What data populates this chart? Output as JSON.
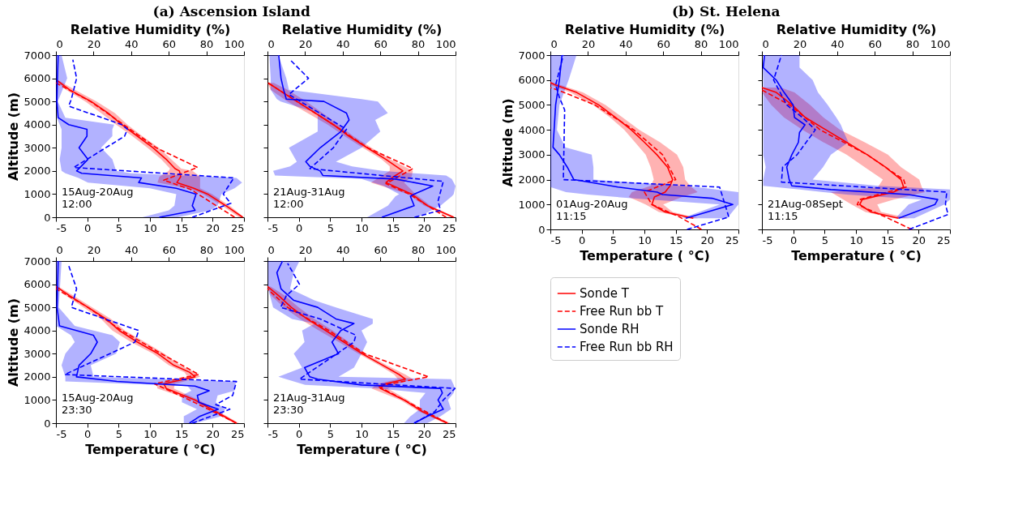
{
  "chart_data": [
    {
      "type": "line",
      "orientation": "horizontal",
      "title": "(a) Ascension Island",
      "x2label": "Relative Humidity (%)",
      "ylabel": "Altitude (m)",
      "xlim": [
        -5,
        25
      ],
      "xticks": [
        -5,
        0,
        5,
        10,
        15,
        20,
        25
      ],
      "x2lim": [
        0,
        100
      ],
      "x2ticks": [
        0,
        20,
        40,
        60,
        80,
        100
      ],
      "ylim": [
        0,
        7000
      ],
      "yticks": [
        0,
        1000,
        2000,
        3000,
        4000,
        5000,
        6000,
        7000
      ],
      "annotations": [
        "15Aug-20Aug\n12:00"
      ],
      "series": [
        {
          "color": "#ff0000",
          "line_style": "solid",
          "x": [
            0,
            500,
            1000,
            1250,
            1500,
            1750,
            2000,
            2100,
            2500,
            3000,
            3500,
            4000,
            4500,
            5000,
            5500,
            5900
          ],
          "values": [
            24.8,
            22.1,
            19.2,
            17.0,
            14.3,
            14.9,
            14.7,
            14.0,
            12.6,
            10.5,
            8.0,
            5.5,
            3.3,
            0.6,
            -2.8,
            -4.8
          ],
          "lower": [
            24.2,
            21.5,
            18.5,
            16,
            11.2,
            11.5,
            13,
            13.2,
            11.8,
            9.6,
            7.2,
            4.6,
            2.2,
            -0.3,
            -3.4,
            -5
          ],
          "upper": [
            25,
            22.7,
            19.9,
            18,
            18,
            18,
            16.8,
            15,
            13.4,
            11.4,
            8.8,
            6.4,
            4.4,
            1.5,
            -2.0,
            -4.5
          ]
        },
        {
          "color": "#ff0000",
          "line_style": "dashed",
          "x": [
            0,
            1200,
            1600,
            2150,
            3000,
            4000,
            5000,
            5800
          ],
          "values": [
            23.5,
            16.5,
            12.2,
            17.6,
            11.0,
            5.8,
            0.5,
            -5
          ]
        },
        {
          "color": "#0000ff",
          "line_style": "solid",
          "axis": "x2",
          "x": [
            0,
            300,
            500,
            1000,
            1250,
            1500,
            1700,
            1900,
            2000,
            2500,
            3000,
            3500,
            3800,
            4000,
            4300,
            5000,
            6000,
            7000
          ],
          "values": [
            55,
            74,
            72.5,
            74.5,
            64,
            44,
            45.5,
            13.7,
            11,
            17,
            12.3,
            16.5,
            16.5,
            6.8,
            1.2,
            0.5,
            0.8,
            1.2
          ],
          "lower": [
            46,
            60,
            63,
            64,
            50,
            17,
            12,
            5,
            3,
            2,
            3,
            3,
            3,
            2,
            0.5,
            0,
            0,
            0
          ],
          "upper": [
            65,
            82,
            86,
            88,
            95,
            99,
            96,
            40,
            32,
            30,
            24,
            30,
            30,
            31,
            5,
            1,
            6,
            3
          ]
        },
        {
          "color": "#0000ff",
          "line_style": "dashed",
          "axis": "x2",
          "x": [
            0,
            600,
            1000,
            1700,
            2150,
            3500,
            3800,
            4000,
            4800,
            5100,
            6000,
            6800
          ],
          "values": [
            72.5,
            93,
            89,
            94.6,
            9.5,
            36.5,
            38,
            35,
            6.8,
            8.2,
            11,
            9
          ]
        }
      ]
    },
    {
      "type": "line",
      "orientation": "horizontal",
      "x2label": "Relative Humidity (%)",
      "tick_labels": "x",
      "xlim": [
        -5,
        25
      ],
      "xticks": [
        -5,
        0,
        5,
        10,
        15,
        20,
        25
      ],
      "x2lim": [
        0,
        100
      ],
      "x2ticks": [
        0,
        20,
        40,
        60,
        80,
        100
      ],
      "ylim": [
        0,
        7000
      ],
      "yticks": [
        0,
        1000,
        2000,
        3000,
        4000,
        5000,
        6000,
        7000
      ],
      "annotations": [
        "21Aug-31Aug\n12:00"
      ],
      "series": [
        {
          "color": "#ff0000",
          "line_style": "solid",
          "x": [
            0,
            500,
            1000,
            1500,
            1750,
            2000,
            2200,
            2500,
            3000,
            3500,
            4000,
            4500,
            5000,
            5500,
            5800
          ],
          "values": [
            24.7,
            20.5,
            18,
            13.9,
            15.1,
            16.6,
            15.5,
            13.9,
            10.9,
            8,
            5.5,
            2.6,
            -0.3,
            -3.2,
            -4.9
          ],
          "lower": [
            24.2,
            20,
            17.4,
            11.5,
            13,
            14.5,
            14.5,
            13.2,
            10.2,
            7.3,
            4.6,
            1.4,
            -1.8,
            -4.5,
            -5
          ],
          "upper": [
            25,
            21,
            18.6,
            16.8,
            18,
            18.2,
            16.8,
            14.6,
            11.6,
            8.7,
            6.3,
            3.8,
            1.2,
            -1.8,
            -4
          ]
        },
        {
          "color": "#ff0000",
          "line_style": "dashed",
          "x": [
            0,
            1000,
            1450,
            2100,
            3000,
            4000,
            5000,
            5800
          ],
          "values": [
            23.5,
            17.6,
            13.9,
            18.2,
            11,
            5.5,
            -0.3,
            -4.9
          ]
        },
        {
          "color": "#0000ff",
          "line_style": "solid",
          "axis": "x2",
          "x": [
            0,
            500,
            900,
            1000,
            1350,
            1650,
            1800,
            2000,
            2200,
            2400,
            3000,
            3700,
            4200,
            4500,
            5000,
            5100,
            5500,
            6000,
            7000
          ],
          "values": [
            60.8,
            78,
            76,
            78,
            87.9,
            68,
            29.5,
            28,
            22.5,
            20.4,
            28,
            39,
            43.4,
            42,
            30,
            10,
            8.6,
            7.2,
            6
          ],
          "lower": [
            53,
            64,
            68,
            70,
            62,
            50,
            4,
            3,
            12,
            15.6,
            11.4,
            26.7,
            26.7,
            26.7,
            7,
            5,
            1.7,
            1.7,
            1
          ],
          "upper": [
            80,
            92,
            98,
            99,
            100,
            98,
            95,
            61,
            45,
            36.4,
            50,
            60,
            57.3,
            64,
            58.7,
            50,
            11.4,
            10,
            5.8
          ]
        },
        {
          "color": "#0000ff",
          "line_style": "dashed",
          "axis": "x2",
          "x": [
            0,
            300,
            700,
            1550,
            2100,
            3000,
            3800,
            4000,
            5300,
            6000,
            6800
          ],
          "values": [
            78.2,
            92,
            90.7,
            93.5,
            22.5,
            35,
            42,
            37.8,
            11.4,
            21.8,
            12
          ]
        }
      ]
    },
    {
      "type": "line",
      "orientation": "horizontal",
      "xlabel": "Temperature ( °C)",
      "ylabel": "Altitude (m)",
      "xlim": [
        -5,
        25
      ],
      "xticks": [
        -5,
        0,
        5,
        10,
        15,
        20,
        25
      ],
      "x2lim": [
        0,
        100
      ],
      "x2ticks": [
        0,
        20,
        40,
        60,
        80,
        100
      ],
      "ylim": [
        0,
        7000
      ],
      "yticks": [
        0,
        1000,
        2000,
        3000,
        4000,
        5000,
        6000,
        7000
      ],
      "annotations": [
        "15Aug-20Aug\n23:30"
      ],
      "series": [
        {
          "color": "#ff0000",
          "line_style": "solid",
          "x": [
            0,
            500,
            1000,
            1500,
            1700,
            1900,
            2000,
            2200,
            2500,
            3000,
            3500,
            4000,
            4500,
            5000,
            5500,
            5900
          ],
          "values": [
            23.8,
            20.5,
            17.2,
            12.6,
            12.2,
            15.5,
            17.2,
            16.3,
            13.8,
            11.3,
            8,
            5.1,
            3,
            0.1,
            -2.8,
            -5
          ],
          "lower": [
            23.4,
            20,
            16.6,
            11.2,
            11,
            14,
            16,
            15.5,
            13,
            10.5,
            7,
            4,
            2.2,
            -0.6,
            -3.4,
            -5
          ],
          "upper": [
            24.2,
            21,
            17.8,
            13.8,
            14,
            16.8,
            18,
            17.2,
            14.8,
            12.3,
            9.2,
            6,
            3.8,
            0.8,
            -2.2,
            -4.6
          ]
        },
        {
          "color": "#ff0000",
          "line_style": "dashed",
          "x": [
            0,
            1000,
            1700,
            2100,
            3000,
            4000,
            5000,
            5800
          ],
          "values": [
            23.8,
            16.3,
            10.7,
            17.8,
            11.8,
            5.5,
            0.1,
            -5
          ]
        },
        {
          "color": "#0000ff",
          "line_style": "solid",
          "axis": "x2",
          "x": [
            0,
            300,
            600,
            900,
            1200,
            1400,
            1600,
            1800,
            2000,
            2500,
            3000,
            3500,
            3800,
            4200,
            5000,
            7000
          ],
          "values": [
            71,
            76.6,
            86.3,
            76,
            75.2,
            81.5,
            73.9,
            32.4,
            10.9,
            12.3,
            18.5,
            22,
            19.9,
            1.9,
            0.6,
            1.2
          ],
          "lower": [
            68,
            68,
            75,
            67,
            67,
            72,
            70,
            5,
            5,
            3,
            5,
            10,
            8,
            0,
            0,
            0
          ],
          "upper": [
            74,
            88,
            90,
            85,
            86,
            95,
            95,
            96,
            20,
            18.5,
            32,
            34,
            30,
            10,
            1.5,
            3
          ]
        },
        {
          "color": "#0000ff",
          "line_style": "dashed",
          "axis": "x2",
          "x": [
            0,
            600,
            800,
            1200,
            1800,
            2100,
            3500,
            4000,
            5000,
            5800,
            6800
          ],
          "values": [
            72.5,
            92.5,
            85,
            94,
            96,
            4.7,
            42,
            44,
            8.2,
            11,
            6.8
          ]
        }
      ]
    },
    {
      "type": "line",
      "orientation": "horizontal",
      "xlabel": "Temperature ( °C)",
      "tick_labels": "x",
      "xlim": [
        -5,
        25
      ],
      "xticks": [
        -5,
        0,
        5,
        10,
        15,
        20,
        25
      ],
      "x2lim": [
        0,
        100
      ],
      "x2ticks": [
        0,
        20,
        40,
        60,
        80,
        100
      ],
      "ylim": [
        0,
        7000
      ],
      "yticks": [
        0,
        1000,
        2000,
        3000,
        4000,
        5000,
        6000,
        7000
      ],
      "annotations": [
        "21Aug-31Aug\n23:30"
      ],
      "series": [
        {
          "color": "#ff0000",
          "line_style": "solid",
          "x": [
            0,
            500,
            1000,
            1500,
            1700,
            1900,
            2100,
            2500,
            3000,
            3500,
            4000,
            4500,
            5000,
            5500,
            5900
          ],
          "values": [
            23.7,
            19.7,
            16.8,
            13,
            13.8,
            17,
            16,
            13.4,
            10.1,
            7.2,
            4.3,
            1.3,
            -1.2,
            -3.2,
            -5
          ],
          "lower": [
            23.2,
            19.2,
            16.2,
            11.6,
            12.5,
            15.8,
            15.2,
            12.8,
            9.5,
            6.4,
            3.2,
            0.2,
            -2.4,
            -4.4,
            -5
          ],
          "upper": [
            24.2,
            20.2,
            17.4,
            14.2,
            15.8,
            18.2,
            17,
            14,
            10.7,
            8,
            5.4,
            2.5,
            0,
            -2.2,
            -4.5
          ]
        },
        {
          "color": "#ff0000",
          "line_style": "dashed",
          "x": [
            0,
            1000,
            1600,
            2000,
            3000,
            4000,
            5000,
            5800
          ],
          "values": [
            23.7,
            16.8,
            12.6,
            20.7,
            10.5,
            4.8,
            -1.8,
            -5
          ]
        },
        {
          "color": "#0000ff",
          "line_style": "solid",
          "axis": "x2",
          "x": [
            0,
            300,
            600,
            1000,
            1300,
            1500,
            1650,
            1900,
            2000,
            2400,
            3000,
            3500,
            4000,
            4300,
            4500,
            5000,
            5300,
            5800,
            6500,
            7000
          ],
          "values": [
            78,
            85,
            93.5,
            90.7,
            93,
            92,
            50,
            26.7,
            22.5,
            19.7,
            37.8,
            34.3,
            39,
            46,
            36.4,
            26.7,
            14,
            7.2,
            5,
            8
          ],
          "lower": [
            72.6,
            76,
            81,
            81,
            84,
            58.7,
            20,
            10,
            5.8,
            18.4,
            14,
            19.7,
            18.4,
            25,
            13,
            3,
            2,
            0.3,
            0.3,
            0.3
          ],
          "upper": [
            85,
            92,
            97.6,
            96,
            99,
            99.7,
            99,
            97.6,
            37.8,
            46,
            50,
            53,
            50,
            56,
            56,
            36.4,
            25,
            12,
            14,
            17
          ]
        },
        {
          "color": "#0000ff",
          "line_style": "dashed",
          "axis": "x2",
          "x": [
            0,
            500,
            1000,
            1500,
            1900,
            3500,
            3800,
            4500,
            5000,
            5500,
            6000,
            6900
          ],
          "values": [
            78,
            89,
            93.5,
            99.7,
            17,
            46,
            47,
            28,
            7,
            10,
            17,
            10.7
          ]
        }
      ]
    },
    {
      "type": "line",
      "orientation": "horizontal",
      "title": "(b) St. Helena",
      "xlabel": "Temperature ( °C)",
      "x2label": "Relative Humidity (%)",
      "ylabel": "Altitude (m)",
      "legend": "bottom",
      "xlim": [
        -5,
        25
      ],
      "xticks": [
        -5,
        0,
        5,
        10,
        15,
        20,
        25
      ],
      "x2lim": [
        0,
        100
      ],
      "x2ticks": [
        0,
        20,
        40,
        60,
        80,
        100
      ],
      "ylim": [
        0,
        7000
      ],
      "yticks": [
        0,
        1000,
        2000,
        3000,
        4000,
        5000,
        6000,
        7000
      ],
      "annotations": [
        "01Aug-20Aug\n11:15"
      ],
      "series": [
        {
          "name": "Sonde T",
          "color": "#ff0000",
          "line_style": "solid",
          "x": [
            450,
            700,
            1000,
            1300,
            1500,
            1750,
            2000,
            2500,
            3000,
            3500,
            4000,
            4500,
            5000,
            5500,
            5800,
            5900
          ],
          "values": [
            17.8,
            13.3,
            11.2,
            11.6,
            13.3,
            14.1,
            14.5,
            13.7,
            12,
            10,
            7.9,
            5.4,
            2.7,
            -0.8,
            -4.2,
            -5
          ],
          "lower": [
            17,
            12.3,
            10.2,
            7.5,
            8,
            11,
            11.5,
            11,
            10.2,
            8.5,
            6.8,
            4.5,
            1.8,
            -1.8,
            -5,
            -5
          ],
          "upper": [
            18.6,
            14.5,
            13,
            16,
            18.5,
            17.3,
            16.5,
            16.2,
            15.2,
            12.5,
            9.2,
            6.5,
            3.8,
            0.2,
            -3.4,
            -4.6
          ]
        },
        {
          "name": "Free Run bb T",
          "color": "#ff0000",
          "line_style": "dashed",
          "x": [
            0,
            500,
            1000,
            1500,
            2000,
            3000,
            4000,
            5000,
            5600,
            5700
          ],
          "values": [
            19.1,
            15.6,
            11.2,
            10,
            15,
            12.9,
            8.3,
            2.1,
            -3.8,
            -5
          ]
        },
        {
          "name": "Sonde RH",
          "color": "#0000ff",
          "line_style": "solid",
          "axis": "x2",
          "x": [
            450,
            1000,
            1250,
            1400,
            1500,
            1700,
            2000,
            2500,
            3000,
            3300,
            4000,
            5000,
            6000,
            7000
          ],
          "values": [
            72,
            97,
            86,
            59.6,
            56.8,
            36,
            12.5,
            9,
            4.8,
            1.4,
            2,
            2.8,
            4.8,
            6.2
          ],
          "lower": [
            70,
            90,
            43,
            20,
            8.3,
            0,
            0,
            0,
            0,
            0,
            0,
            0,
            0,
            0
          ],
          "upper": [
            94,
            100,
            100,
            100,
            100,
            77.6,
            22.9,
            22.9,
            22,
            8,
            3.5,
            4.8,
            9.7,
            13.9
          ]
        },
        {
          "name": "Free Run bb RH",
          "color": "#0000ff",
          "line_style": "dashed",
          "axis": "x2",
          "x": [
            0,
            500,
            1700,
            2000,
            4800,
            5300,
            5800,
            7000
          ],
          "values": [
            72.7,
            94.9,
            90,
            6.9,
            7.6,
            4.8,
            2.8,
            6.9
          ]
        }
      ]
    },
    {
      "type": "line",
      "orientation": "horizontal",
      "xlabel": "Temperature ( °C)",
      "x2label": "Relative Humidity (%)",
      "tick_labels": "x",
      "xlim": [
        -5,
        25
      ],
      "xticks": [
        -5,
        0,
        5,
        10,
        15,
        20,
        25
      ],
      "x2lim": [
        0,
        100
      ],
      "x2ticks": [
        0,
        20,
        40,
        60,
        80,
        100
      ],
      "ylim": [
        0,
        7000
      ],
      "yticks": [
        0,
        1000,
        2000,
        3000,
        4000,
        5000,
        6000,
        7000
      ],
      "annotations": [
        "21Aug-08Sept\n11:15"
      ],
      "series": [
        {
          "color": "#ff0000",
          "line_style": "solid",
          "x": [
            450,
            700,
            1000,
            1200,
            1500,
            1700,
            2000,
            2500,
            3000,
            3500,
            4000,
            4500,
            5000,
            5500,
            5700
          ],
          "values": [
            16.8,
            12.4,
            10.6,
            11,
            16,
            17.6,
            17.2,
            14.7,
            11.8,
            8.5,
            5.2,
            1.9,
            -0.2,
            -2.7,
            -5
          ],
          "lower": [
            16,
            11.5,
            9.3,
            8,
            6,
            13.5,
            14.3,
            11.4,
            8.5,
            4.8,
            1.5,
            -1.5,
            -3.5,
            -5,
            -5
          ],
          "upper": [
            18.5,
            14,
            13.4,
            16,
            21,
            20.5,
            20.1,
            17.2,
            15.1,
            11.4,
            7.5,
            4.8,
            2.7,
            0.2,
            -2
          ]
        },
        {
          "color": "#ff0000",
          "line_style": "dashed",
          "x": [
            0,
            500,
            1000,
            1200,
            1700,
            2000,
            3000,
            4000,
            5000,
            5600
          ],
          "values": [
            18.9,
            14.7,
            10.2,
            10.6,
            18,
            17.6,
            11.8,
            4.3,
            -0.6,
            -5
          ]
        },
        {
          "color": "#0000ff",
          "line_style": "solid",
          "axis": "x2",
          "x": [
            450,
            1000,
            1200,
            1400,
            1600,
            1750,
            2000,
            2500,
            3000,
            3500,
            3900,
            4200,
            4500,
            5000,
            5500,
            6000,
            6500,
            7000
          ],
          "values": [
            72.7,
            92,
            93.5,
            78,
            36.7,
            15.9,
            14.5,
            13.2,
            15.9,
            19.4,
            20,
            22.9,
            17.3,
            16.6,
            11.8,
            7.6,
            0.7,
            1.4
          ],
          "lower": [
            71,
            78,
            85,
            45,
            20,
            0.7,
            0.7,
            2,
            0.7,
            0.7,
            0.7,
            0.7,
            0.7,
            0.7,
            0.7,
            0.7,
            0.3,
            0.7
          ],
          "upper": [
            81,
            97,
            100,
            100,
            100,
            62,
            27,
            32.5,
            36.7,
            46,
            43.6,
            42,
            39.5,
            35,
            29.8,
            27,
            20,
            20
          ]
        },
        {
          "color": "#0000ff",
          "line_style": "dashed",
          "axis": "x2",
          "x": [
            0,
            600,
            1000,
            1500,
            1900,
            2500,
            3000,
            4000,
            4500,
            5000,
            6000,
            7000
          ],
          "values": [
            78.3,
            99,
            97.6,
            98.3,
            10.4,
            11,
            18.7,
            28.4,
            21.5,
            13.2,
            6.2,
            10.4
          ]
        }
      ]
    }
  ]
}
